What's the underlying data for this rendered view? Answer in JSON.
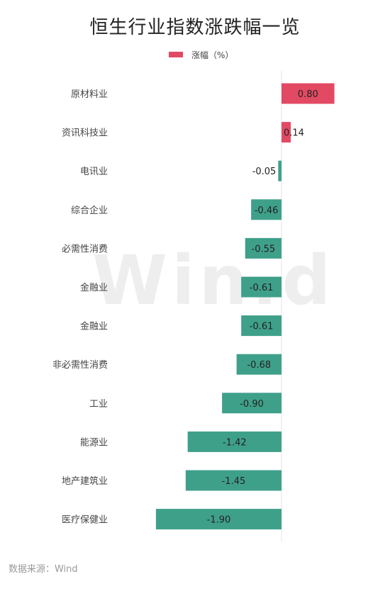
{
  "chart_data": {
    "type": "bar",
    "orientation": "horizontal",
    "title": "恒生行业指数涨跌幅一览",
    "legend": "涨幅（%）",
    "categories": [
      "原材料业",
      "资讯科技业",
      "电讯业",
      "综合企业",
      "必需性消费",
      "金融业",
      "金融业",
      "非必需性消费",
      "工业",
      "能源业",
      "地产建筑业",
      "医疗保健业"
    ],
    "series": [
      {
        "name": "涨幅（%）",
        "values": [
          0.8,
          0.14,
          -0.05,
          -0.46,
          -0.55,
          -0.61,
          -0.61,
          -0.68,
          -0.9,
          -1.42,
          -1.45,
          -1.9
        ]
      }
    ],
    "value_labels": [
      "0.80",
      "0.14",
      "-0.05",
      "-0.46",
      "-0.55",
      "-0.61",
      "-0.61",
      "-0.68",
      "-0.90",
      "-1.42",
      "-1.45",
      "-1.90"
    ],
    "colors": {
      "positive": "#e24a63",
      "negative": "#3fa08a"
    }
  },
  "watermark": "Win.d",
  "source": "数据来源：Wind"
}
